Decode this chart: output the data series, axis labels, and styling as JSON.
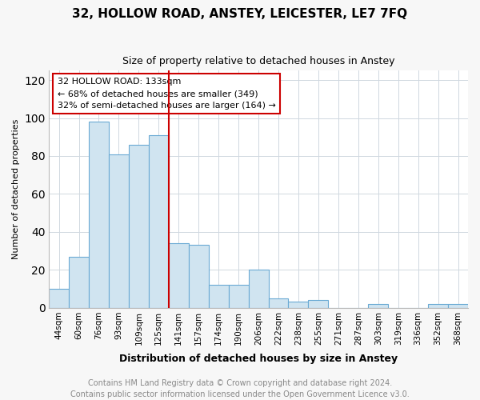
{
  "title": "32, HOLLOW ROAD, ANSTEY, LEICESTER, LE7 7FQ",
  "subtitle": "Size of property relative to detached houses in Anstey",
  "xlabel": "Distribution of detached houses by size in Anstey",
  "ylabel": "Number of detached properties",
  "categories": [
    "44sqm",
    "60sqm",
    "76sqm",
    "93sqm",
    "109sqm",
    "125sqm",
    "141sqm",
    "157sqm",
    "174sqm",
    "190sqm",
    "206sqm",
    "222sqm",
    "238sqm",
    "255sqm",
    "271sqm",
    "287sqm",
    "303sqm",
    "319sqm",
    "336sqm",
    "352sqm",
    "368sqm"
  ],
  "values": [
    10,
    27,
    98,
    81,
    86,
    91,
    34,
    33,
    12,
    12,
    20,
    5,
    3,
    4,
    0,
    0,
    2,
    0,
    0,
    2,
    2
  ],
  "bar_color": "#d0e4f0",
  "bar_edge_color": "#6aaad4",
  "vline_color": "#cc0000",
  "vline_pos": 6.0,
  "annotation_text": "32 HOLLOW ROAD: 133sqm\n← 68% of detached houses are smaller (349)\n32% of semi-detached houses are larger (164) →",
  "ylim": [
    0,
    125
  ],
  "yticks": [
    0,
    20,
    40,
    60,
    80,
    100,
    120
  ],
  "footer_text": "Contains HM Land Registry data © Crown copyright and database right 2024.\nContains public sector information licensed under the Open Government Licence v3.0.",
  "background_color": "#f7f7f7",
  "plot_bg_color": "#ffffff",
  "title_fontsize": 11,
  "subtitle_fontsize": 9,
  "ylabel_fontsize": 8,
  "xlabel_fontsize": 9,
  "tick_fontsize": 7.5,
  "annotation_fontsize": 8,
  "footer_fontsize": 7
}
